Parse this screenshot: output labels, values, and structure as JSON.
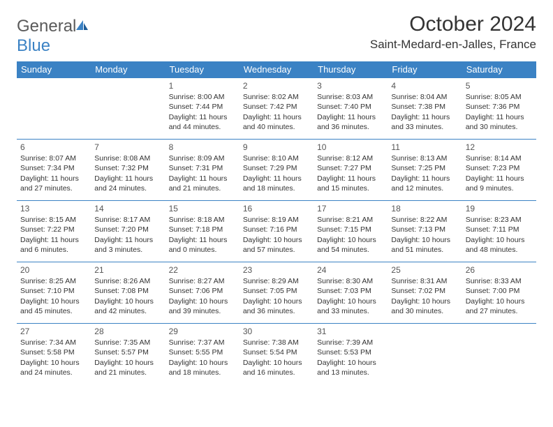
{
  "brand": {
    "name_a": "General",
    "name_b": "Blue"
  },
  "title": "October 2024",
  "location": "Saint-Medard-en-Jalles, France",
  "colors": {
    "accent": "#3b82c4",
    "text": "#333333",
    "bg": "#ffffff"
  },
  "calendar": {
    "day_headers": [
      "Sunday",
      "Monday",
      "Tuesday",
      "Wednesday",
      "Thursday",
      "Friday",
      "Saturday"
    ],
    "header_bg": "#3b82c4",
    "header_color": "#ffffff",
    "border_color": "#3b82c4",
    "cell_fontsize": 10.5,
    "daynum_fontsize": 12,
    "weeks": [
      [
        null,
        null,
        {
          "n": "1",
          "sunrise": "Sunrise: 8:00 AM",
          "sunset": "Sunset: 7:44 PM",
          "daylight": "Daylight: 11 hours and 44 minutes."
        },
        {
          "n": "2",
          "sunrise": "Sunrise: 8:02 AM",
          "sunset": "Sunset: 7:42 PM",
          "daylight": "Daylight: 11 hours and 40 minutes."
        },
        {
          "n": "3",
          "sunrise": "Sunrise: 8:03 AM",
          "sunset": "Sunset: 7:40 PM",
          "daylight": "Daylight: 11 hours and 36 minutes."
        },
        {
          "n": "4",
          "sunrise": "Sunrise: 8:04 AM",
          "sunset": "Sunset: 7:38 PM",
          "daylight": "Daylight: 11 hours and 33 minutes."
        },
        {
          "n": "5",
          "sunrise": "Sunrise: 8:05 AM",
          "sunset": "Sunset: 7:36 PM",
          "daylight": "Daylight: 11 hours and 30 minutes."
        }
      ],
      [
        {
          "n": "6",
          "sunrise": "Sunrise: 8:07 AM",
          "sunset": "Sunset: 7:34 PM",
          "daylight": "Daylight: 11 hours and 27 minutes."
        },
        {
          "n": "7",
          "sunrise": "Sunrise: 8:08 AM",
          "sunset": "Sunset: 7:32 PM",
          "daylight": "Daylight: 11 hours and 24 minutes."
        },
        {
          "n": "8",
          "sunrise": "Sunrise: 8:09 AM",
          "sunset": "Sunset: 7:31 PM",
          "daylight": "Daylight: 11 hours and 21 minutes."
        },
        {
          "n": "9",
          "sunrise": "Sunrise: 8:10 AM",
          "sunset": "Sunset: 7:29 PM",
          "daylight": "Daylight: 11 hours and 18 minutes."
        },
        {
          "n": "10",
          "sunrise": "Sunrise: 8:12 AM",
          "sunset": "Sunset: 7:27 PM",
          "daylight": "Daylight: 11 hours and 15 minutes."
        },
        {
          "n": "11",
          "sunrise": "Sunrise: 8:13 AM",
          "sunset": "Sunset: 7:25 PM",
          "daylight": "Daylight: 11 hours and 12 minutes."
        },
        {
          "n": "12",
          "sunrise": "Sunrise: 8:14 AM",
          "sunset": "Sunset: 7:23 PM",
          "daylight": "Daylight: 11 hours and 9 minutes."
        }
      ],
      [
        {
          "n": "13",
          "sunrise": "Sunrise: 8:15 AM",
          "sunset": "Sunset: 7:22 PM",
          "daylight": "Daylight: 11 hours and 6 minutes."
        },
        {
          "n": "14",
          "sunrise": "Sunrise: 8:17 AM",
          "sunset": "Sunset: 7:20 PM",
          "daylight": "Daylight: 11 hours and 3 minutes."
        },
        {
          "n": "15",
          "sunrise": "Sunrise: 8:18 AM",
          "sunset": "Sunset: 7:18 PM",
          "daylight": "Daylight: 11 hours and 0 minutes."
        },
        {
          "n": "16",
          "sunrise": "Sunrise: 8:19 AM",
          "sunset": "Sunset: 7:16 PM",
          "daylight": "Daylight: 10 hours and 57 minutes."
        },
        {
          "n": "17",
          "sunrise": "Sunrise: 8:21 AM",
          "sunset": "Sunset: 7:15 PM",
          "daylight": "Daylight: 10 hours and 54 minutes."
        },
        {
          "n": "18",
          "sunrise": "Sunrise: 8:22 AM",
          "sunset": "Sunset: 7:13 PM",
          "daylight": "Daylight: 10 hours and 51 minutes."
        },
        {
          "n": "19",
          "sunrise": "Sunrise: 8:23 AM",
          "sunset": "Sunset: 7:11 PM",
          "daylight": "Daylight: 10 hours and 48 minutes."
        }
      ],
      [
        {
          "n": "20",
          "sunrise": "Sunrise: 8:25 AM",
          "sunset": "Sunset: 7:10 PM",
          "daylight": "Daylight: 10 hours and 45 minutes."
        },
        {
          "n": "21",
          "sunrise": "Sunrise: 8:26 AM",
          "sunset": "Sunset: 7:08 PM",
          "daylight": "Daylight: 10 hours and 42 minutes."
        },
        {
          "n": "22",
          "sunrise": "Sunrise: 8:27 AM",
          "sunset": "Sunset: 7:06 PM",
          "daylight": "Daylight: 10 hours and 39 minutes."
        },
        {
          "n": "23",
          "sunrise": "Sunrise: 8:29 AM",
          "sunset": "Sunset: 7:05 PM",
          "daylight": "Daylight: 10 hours and 36 minutes."
        },
        {
          "n": "24",
          "sunrise": "Sunrise: 8:30 AM",
          "sunset": "Sunset: 7:03 PM",
          "daylight": "Daylight: 10 hours and 33 minutes."
        },
        {
          "n": "25",
          "sunrise": "Sunrise: 8:31 AM",
          "sunset": "Sunset: 7:02 PM",
          "daylight": "Daylight: 10 hours and 30 minutes."
        },
        {
          "n": "26",
          "sunrise": "Sunrise: 8:33 AM",
          "sunset": "Sunset: 7:00 PM",
          "daylight": "Daylight: 10 hours and 27 minutes."
        }
      ],
      [
        {
          "n": "27",
          "sunrise": "Sunrise: 7:34 AM",
          "sunset": "Sunset: 5:58 PM",
          "daylight": "Daylight: 10 hours and 24 minutes."
        },
        {
          "n": "28",
          "sunrise": "Sunrise: 7:35 AM",
          "sunset": "Sunset: 5:57 PM",
          "daylight": "Daylight: 10 hours and 21 minutes."
        },
        {
          "n": "29",
          "sunrise": "Sunrise: 7:37 AM",
          "sunset": "Sunset: 5:55 PM",
          "daylight": "Daylight: 10 hours and 18 minutes."
        },
        {
          "n": "30",
          "sunrise": "Sunrise: 7:38 AM",
          "sunset": "Sunset: 5:54 PM",
          "daylight": "Daylight: 10 hours and 16 minutes."
        },
        {
          "n": "31",
          "sunrise": "Sunrise: 7:39 AM",
          "sunset": "Sunset: 5:53 PM",
          "daylight": "Daylight: 10 hours and 13 minutes."
        },
        null,
        null
      ]
    ]
  }
}
